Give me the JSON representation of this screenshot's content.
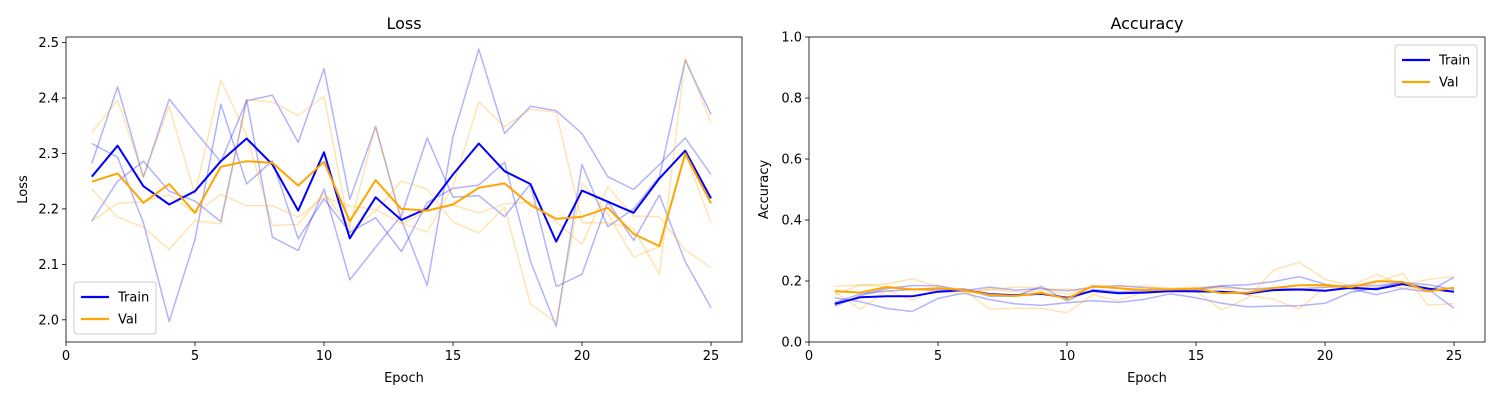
{
  "chart_data": [
    {
      "type": "line",
      "title": "Loss",
      "xlabel": "Epoch",
      "ylabel": "Loss",
      "xlim": [
        0,
        26.2
      ],
      "ylim": [
        1.96,
        2.51
      ],
      "xticks": [
        0,
        5,
        10,
        15,
        20,
        25
      ],
      "yticks": [
        2.0,
        2.1,
        2.2,
        2.3,
        2.4,
        2.5
      ],
      "ytick_labels": [
        "2.0",
        "2.1",
        "2.2",
        "2.3",
        "2.4",
        "2.5"
      ],
      "legend": {
        "position": "lower-left",
        "entries": [
          "Train",
          "Val"
        ]
      },
      "x": [
        1,
        2,
        3,
        4,
        5,
        6,
        7,
        8,
        9,
        10,
        11,
        12,
        13,
        14,
        15,
        16,
        17,
        18,
        19,
        20,
        21,
        22,
        23,
        24,
        25
      ],
      "series": [
        {
          "name": "Train",
          "color": "#0000ff",
          "role": "mean",
          "values": [
            2.258,
            2.314,
            2.241,
            2.208,
            2.232,
            2.286,
            2.327,
            2.28,
            2.197,
            2.302,
            2.147,
            2.221,
            2.18,
            2.201,
            2.262,
            2.318,
            2.268,
            2.245,
            2.141,
            2.233,
            2.213,
            2.193,
            2.255,
            2.305,
            2.219
          ]
        },
        {
          "name": "Val",
          "color": "#ffa500",
          "role": "mean",
          "values": [
            2.249,
            2.264,
            2.211,
            2.245,
            2.193,
            2.276,
            2.286,
            2.283,
            2.242,
            2.285,
            2.178,
            2.252,
            2.2,
            2.197,
            2.208,
            2.238,
            2.246,
            2.207,
            2.182,
            2.186,
            2.202,
            2.155,
            2.133,
            2.3,
            2.21
          ]
        },
        {
          "color": "#0000ff",
          "role": "run",
          "values": [
            2.282,
            2.42,
            2.257,
            2.398,
            2.34,
            2.285,
            2.395,
            2.405,
            2.32,
            2.453,
            2.217,
            2.348,
            2.18,
            2.062,
            2.33,
            2.488,
            2.336,
            2.385,
            2.377,
            2.336,
            2.258,
            2.235,
            2.28,
            2.328,
            2.262
          ]
        },
        {
          "color": "#0000ff",
          "role": "run",
          "values": [
            2.178,
            2.25,
            2.286,
            2.232,
            2.214,
            2.177,
            2.397,
            2.149,
            2.125,
            2.236,
            2.072,
            2.131,
            2.188,
            2.328,
            2.221,
            2.224,
            2.186,
            2.245,
            2.06,
            2.082,
            2.213,
            2.143,
            2.225,
            2.105,
            2.022
          ]
        },
        {
          "color": "#0000ff",
          "role": "run",
          "values": [
            2.318,
            2.293,
            2.175,
            1.997,
            2.145,
            2.389,
            2.245,
            2.287,
            2.146,
            2.218,
            2.158,
            2.184,
            2.123,
            2.212,
            2.237,
            2.243,
            2.284,
            2.106,
            1.988,
            2.28,
            2.168,
            2.2,
            2.258,
            2.468,
            2.37
          ]
        },
        {
          "color": "#ffa500",
          "role": "run",
          "values": [
            2.337,
            2.396,
            2.258,
            2.385,
            2.226,
            2.432,
            2.334,
            2.17,
            2.172,
            2.229,
            2.167,
            2.35,
            2.175,
            2.158,
            2.241,
            2.393,
            2.348,
            2.38,
            2.374,
            2.175,
            2.175,
            2.165,
            2.082,
            2.473,
            2.355
          ]
        },
        {
          "color": "#ffa500",
          "role": "run",
          "values": [
            2.236,
            2.185,
            2.167,
            2.127,
            2.179,
            2.173,
            2.397,
            2.393,
            2.368,
            2.403,
            2.162,
            2.196,
            2.25,
            2.236,
            2.176,
            2.157,
            2.203,
            2.029,
            1.995,
            2.247,
            2.191,
            2.113,
            2.132,
            2.3,
            2.175
          ]
        },
        {
          "color": "#ffa500",
          "role": "run",
          "values": [
            2.178,
            2.21,
            2.213,
            2.226,
            2.192,
            2.226,
            2.206,
            2.206,
            2.185,
            2.221,
            2.205,
            2.199,
            2.174,
            2.196,
            2.207,
            2.193,
            2.209,
            2.213,
            2.177,
            2.136,
            2.24,
            2.187,
            2.186,
            2.126,
            2.094
          ]
        }
      ]
    },
    {
      "type": "line",
      "title": "Accuracy",
      "xlabel": "Epoch",
      "ylabel": "Accuracy",
      "xlim": [
        0,
        26.2
      ],
      "ylim": [
        0.0,
        1.0
      ],
      "xticks": [
        0,
        5,
        10,
        15,
        20,
        25
      ],
      "yticks": [
        0.0,
        0.2,
        0.4,
        0.6,
        0.8,
        1.0
      ],
      "ytick_labels": [
        "0.0",
        "0.2",
        "0.4",
        "0.6",
        "0.8",
        "1.0"
      ],
      "legend": {
        "position": "top-right",
        "entries": [
          "Train",
          "Val"
        ]
      },
      "x": [
        1,
        2,
        3,
        4,
        5,
        6,
        7,
        8,
        9,
        10,
        11,
        12,
        13,
        14,
        15,
        16,
        17,
        18,
        19,
        20,
        21,
        22,
        23,
        24,
        25
      ],
      "series": [
        {
          "name": "Train",
          "color": "#0000ff",
          "role": "mean",
          "values": [
            0.125,
            0.147,
            0.15,
            0.15,
            0.165,
            0.17,
            0.157,
            0.153,
            0.158,
            0.145,
            0.168,
            0.16,
            0.162,
            0.167,
            0.166,
            0.165,
            0.159,
            0.17,
            0.172,
            0.168,
            0.178,
            0.173,
            0.19,
            0.175,
            0.165
          ]
        },
        {
          "name": "Val",
          "color": "#ffa500",
          "role": "mean",
          "values": [
            0.167,
            0.162,
            0.18,
            0.172,
            0.176,
            0.17,
            0.155,
            0.151,
            0.161,
            0.142,
            0.183,
            0.176,
            0.17,
            0.172,
            0.175,
            0.16,
            0.162,
            0.177,
            0.186,
            0.187,
            0.18,
            0.199,
            0.197,
            0.166,
            0.178
          ]
        },
        {
          "color": "#0000ff",
          "role": "run",
          "values": [
            0.118,
            0.152,
            0.175,
            0.185,
            0.185,
            0.168,
            0.18,
            0.17,
            0.175,
            0.168,
            0.179,
            0.185,
            0.178,
            0.172,
            0.175,
            0.185,
            0.188,
            0.198,
            0.214,
            0.19,
            0.174,
            0.155,
            0.175,
            0.165,
            0.212
          ]
        },
        {
          "color": "#0000ff",
          "role": "run",
          "values": [
            0.145,
            0.132,
            0.11,
            0.1,
            0.143,
            0.16,
            0.139,
            0.125,
            0.12,
            0.129,
            0.135,
            0.13,
            0.14,
            0.158,
            0.145,
            0.127,
            0.115,
            0.118,
            0.119,
            0.127,
            0.163,
            0.177,
            0.197,
            0.173,
            0.111
          ]
        },
        {
          "color": "#0000ff",
          "role": "run",
          "values": [
            0.13,
            0.158,
            0.167,
            0.172,
            0.17,
            0.175,
            0.15,
            0.15,
            0.182,
            0.135,
            0.172,
            0.165,
            0.168,
            0.171,
            0.171,
            0.183,
            0.173,
            0.178,
            0.173,
            0.18,
            0.186,
            0.185,
            0.195,
            0.188,
            0.172
          ]
        },
        {
          "color": "#ffa500",
          "role": "run",
          "values": [
            0.183,
            0.187,
            0.19,
            0.207,
            0.182,
            0.172,
            0.108,
            0.11,
            0.11,
            0.096,
            0.155,
            0.135,
            0.166,
            0.17,
            0.167,
            0.105,
            0.145,
            0.235,
            0.262,
            0.205,
            0.185,
            0.222,
            0.188,
            0.205,
            0.215
          ]
        },
        {
          "color": "#ffa500",
          "role": "run",
          "values": [
            0.163,
            0.107,
            0.17,
            0.137,
            0.177,
            0.166,
            0.17,
            0.18,
            0.178,
            0.156,
            0.186,
            0.182,
            0.184,
            0.175,
            0.18,
            0.18,
            0.153,
            0.14,
            0.108,
            0.18,
            0.175,
            0.195,
            0.225,
            0.121,
            0.126
          ]
        },
        {
          "color": "#ffa500",
          "role": "run",
          "values": [
            0.155,
            0.187,
            0.182,
            0.175,
            0.165,
            0.158,
            0.175,
            0.163,
            0.168,
            0.174,
            0.161,
            0.162,
            0.178,
            0.176,
            0.174,
            0.176,
            0.175,
            0.168,
            0.176,
            0.18,
            0.18,
            0.18,
            0.178,
            0.177,
            0.174
          ]
        }
      ]
    }
  ]
}
